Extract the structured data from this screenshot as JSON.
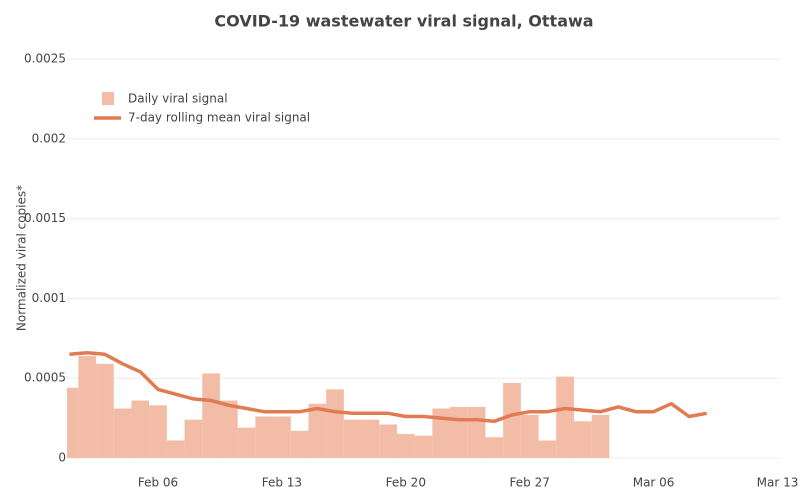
{
  "chart_data": {
    "type": "bar+line",
    "title": "COVID-19 wastewater viral signal, Ottawa",
    "y_label": "Normalized viral copies*",
    "categories": [
      null,
      null,
      null,
      null,
      null,
      "Feb 06",
      null,
      null,
      null,
      null,
      null,
      null,
      "Feb 13",
      null,
      null,
      null,
      null,
      null,
      null,
      "Feb 20",
      null,
      null,
      null,
      null,
      null,
      null,
      "Feb 27",
      null,
      null,
      null,
      null,
      null,
      null,
      "Mar 06",
      null,
      null,
      null,
      null,
      null,
      null,
      "Mar 13"
    ],
    "series": [
      {
        "name": "Daily viral signal",
        "type": "bar",
        "color": "#f2bca6",
        "values": [
          0.00044,
          0.00064,
          0.00059,
          0.00031,
          0.00036,
          0.00033,
          0.00011,
          0.00024,
          0.00053,
          0.00036,
          0.00019,
          0.00026,
          0.00026,
          0.00017,
          0.00034,
          0.00043,
          0.00024,
          0.00024,
          0.00021,
          0.00015,
          0.00014,
          0.00031,
          0.00032,
          0.00032,
          0.00013,
          0.00047,
          0.00027,
          0.00011,
          0.00051,
          0.00023,
          0.00027,
          null,
          null,
          null,
          null,
          null,
          null,
          null,
          null,
          null,
          null
        ]
      },
      {
        "name": "7-day rolling mean viral signal",
        "type": "line",
        "color": "#e07b54",
        "values": [
          0.00065,
          0.00066,
          0.00065,
          0.00059,
          0.00054,
          0.00043,
          0.0004,
          0.00037,
          0.00036,
          0.00033,
          0.00031,
          0.00029,
          0.00029,
          0.00029,
          0.00031,
          0.00029,
          0.00028,
          0.00028,
          0.00028,
          0.00026,
          0.00026,
          0.00025,
          0.00024,
          0.00024,
          0.00023,
          0.00027,
          0.00029,
          0.00029,
          0.00031,
          0.0003,
          0.00029,
          0.00032,
          0.00029,
          0.00029,
          0.00034,
          0.00026,
          0.00028,
          null,
          null,
          null,
          null
        ]
      }
    ],
    "ylim": [
      0,
      0.0025
    ],
    "yticks": [
      0,
      0.0005,
      0.001,
      0.0015,
      0.002,
      0.0025
    ],
    "grid": true,
    "legend": "top-left"
  }
}
